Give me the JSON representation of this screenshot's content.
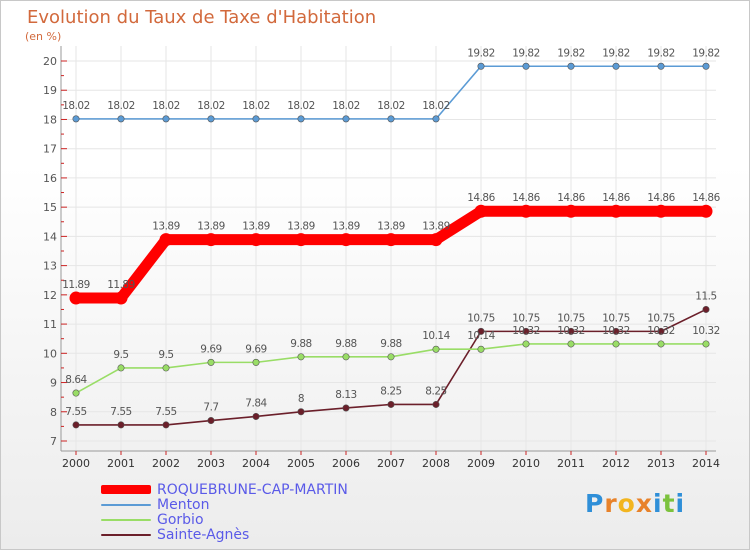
{
  "chart_data": {
    "type": "line",
    "title": "Evolution du Taux de Taxe d'Habitation",
    "subtitle": "(en %)",
    "x": [
      2000,
      2001,
      2002,
      2003,
      2004,
      2005,
      2006,
      2007,
      2008,
      2009,
      2010,
      2011,
      2012,
      2013,
      2014
    ],
    "ylim": [
      7,
      20
    ],
    "yticks": [
      7,
      8,
      9,
      10,
      11,
      12,
      13,
      14,
      15,
      16,
      17,
      18,
      19,
      20
    ],
    "legend_position": "bottom-left",
    "series": [
      {
        "name": "ROQUEBRUNE-CAP-MARTIN",
        "color": "#ff0000",
        "values": [
          11.89,
          11.89,
          13.89,
          13.89,
          13.89,
          13.89,
          13.89,
          13.89,
          13.89,
          14.86,
          14.86,
          14.86,
          14.86,
          14.86,
          14.86
        ]
      },
      {
        "name": "Menton",
        "color": "#5b9bd5",
        "values": [
          18.02,
          18.02,
          18.02,
          18.02,
          18.02,
          18.02,
          18.02,
          18.02,
          18.02,
          19.82,
          19.82,
          19.82,
          19.82,
          19.82,
          19.82
        ]
      },
      {
        "name": "Gorbio",
        "color": "#99dd66",
        "values": [
          8.64,
          9.5,
          9.5,
          9.69,
          9.69,
          9.88,
          9.88,
          9.88,
          10.14,
          10.14,
          10.32,
          10.32,
          10.32,
          10.32,
          10.32
        ]
      },
      {
        "name": "Sainte-Agnès",
        "color": "#6b1f2a",
        "values": [
          7.55,
          7.55,
          7.55,
          7.7,
          7.84,
          8,
          8.13,
          8.25,
          8.25,
          10.75,
          10.75,
          10.75,
          10.75,
          10.75,
          11.5
        ]
      }
    ]
  },
  "legend": {
    "items": [
      {
        "label": "ROQUEBRUNE-CAP-MARTIN",
        "color": "#ff0000"
      },
      {
        "label": "Menton",
        "color": "#5b9bd5"
      },
      {
        "label": "Gorbio",
        "color": "#99dd66"
      },
      {
        "label": "Sainte-Agnès",
        "color": "#6b1f2a"
      }
    ]
  },
  "logo": {
    "text": "Proxiti",
    "letters": [
      "P",
      "r",
      "o",
      "x",
      "i",
      "t",
      "i"
    ],
    "colors": [
      "#2f8fd8",
      "#e8822a",
      "#f2b51f",
      "#e8822a",
      "#2f8fd8",
      "#7cc23d",
      "#2f8fd8"
    ]
  }
}
